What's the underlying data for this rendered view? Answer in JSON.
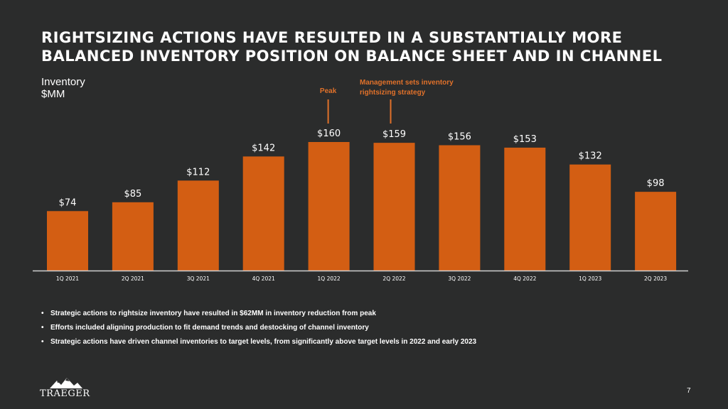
{
  "slide": {
    "title": "RIGHTSIZING ACTIONS HAVE RESULTED IN A SUBSTANTIALLY MORE BALANCED INVENTORY POSITION ON BALANCE SHEET AND IN CHANNEL",
    "bullets": [
      "Strategic actions to rightsize inventory have resulted in $62MM in inventory reduction from peak",
      "Efforts included aligning production to fit demand trends and destocking of channel inventory",
      "Strategic actions have driven channel inventories to target levels, from significantly above target levels in 2022 and early 2023"
    ],
    "logo_text": "TRAEGER",
    "page_number": "7"
  },
  "colors": {
    "background": "#2b2c2c",
    "bar": "#d35e13",
    "annotation": "#e0712a",
    "axis": "#cfcfcf"
  },
  "chart_data": {
    "type": "bar",
    "ylabel_line1": "Inventory",
    "ylabel_line2": "$MM",
    "categories": [
      "1Q 2021",
      "2Q 2021",
      "3Q 2021",
      "4Q 2021",
      "1Q 2022",
      "2Q 2022",
      "3Q 2022",
      "4Q 2022",
      "1Q 2023",
      "2Q 2023"
    ],
    "values": [
      74,
      85,
      112,
      142,
      160,
      159,
      156,
      153,
      132,
      98
    ],
    "data_labels": [
      "$74",
      "$85",
      "$112",
      "$142",
      "$160",
      "$159",
      "$156",
      "$153",
      "$132",
      "$98"
    ],
    "ylim": [
      0,
      160
    ],
    "grid": false,
    "annotations": [
      {
        "text": "Peak",
        "category_index": 4
      },
      {
        "text": "Management sets inventory rightsizing strategy",
        "category_index": 5
      }
    ]
  }
}
